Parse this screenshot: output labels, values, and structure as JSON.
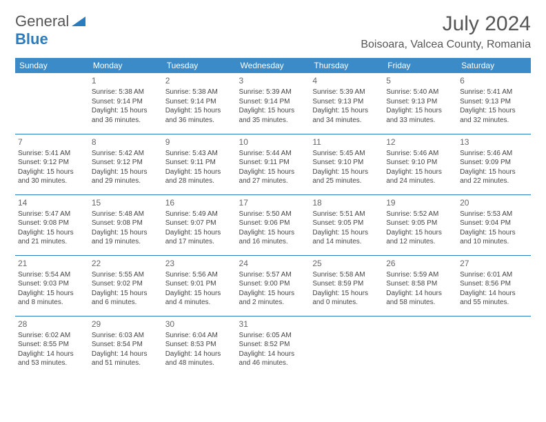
{
  "logo": {
    "text1": "General",
    "text2": "Blue"
  },
  "title": "July 2024",
  "location": "Boisoara, Valcea County, Romania",
  "header_bg": "#3b8bc9",
  "border_color": "#2b7bbf",
  "weekdays": [
    "Sunday",
    "Monday",
    "Tuesday",
    "Wednesday",
    "Thursday",
    "Friday",
    "Saturday"
  ],
  "start_offset": 1,
  "days": [
    {
      "n": 1,
      "sunrise": "5:38 AM",
      "sunset": "9:14 PM",
      "daylight": "15 hours and 36 minutes."
    },
    {
      "n": 2,
      "sunrise": "5:38 AM",
      "sunset": "9:14 PM",
      "daylight": "15 hours and 36 minutes."
    },
    {
      "n": 3,
      "sunrise": "5:39 AM",
      "sunset": "9:14 PM",
      "daylight": "15 hours and 35 minutes."
    },
    {
      "n": 4,
      "sunrise": "5:39 AM",
      "sunset": "9:13 PM",
      "daylight": "15 hours and 34 minutes."
    },
    {
      "n": 5,
      "sunrise": "5:40 AM",
      "sunset": "9:13 PM",
      "daylight": "15 hours and 33 minutes."
    },
    {
      "n": 6,
      "sunrise": "5:41 AM",
      "sunset": "9:13 PM",
      "daylight": "15 hours and 32 minutes."
    },
    {
      "n": 7,
      "sunrise": "5:41 AM",
      "sunset": "9:12 PM",
      "daylight": "15 hours and 30 minutes."
    },
    {
      "n": 8,
      "sunrise": "5:42 AM",
      "sunset": "9:12 PM",
      "daylight": "15 hours and 29 minutes."
    },
    {
      "n": 9,
      "sunrise": "5:43 AM",
      "sunset": "9:11 PM",
      "daylight": "15 hours and 28 minutes."
    },
    {
      "n": 10,
      "sunrise": "5:44 AM",
      "sunset": "9:11 PM",
      "daylight": "15 hours and 27 minutes."
    },
    {
      "n": 11,
      "sunrise": "5:45 AM",
      "sunset": "9:10 PM",
      "daylight": "15 hours and 25 minutes."
    },
    {
      "n": 12,
      "sunrise": "5:46 AM",
      "sunset": "9:10 PM",
      "daylight": "15 hours and 24 minutes."
    },
    {
      "n": 13,
      "sunrise": "5:46 AM",
      "sunset": "9:09 PM",
      "daylight": "15 hours and 22 minutes."
    },
    {
      "n": 14,
      "sunrise": "5:47 AM",
      "sunset": "9:08 PM",
      "daylight": "15 hours and 21 minutes."
    },
    {
      "n": 15,
      "sunrise": "5:48 AM",
      "sunset": "9:08 PM",
      "daylight": "15 hours and 19 minutes."
    },
    {
      "n": 16,
      "sunrise": "5:49 AM",
      "sunset": "9:07 PM",
      "daylight": "15 hours and 17 minutes."
    },
    {
      "n": 17,
      "sunrise": "5:50 AM",
      "sunset": "9:06 PM",
      "daylight": "15 hours and 16 minutes."
    },
    {
      "n": 18,
      "sunrise": "5:51 AM",
      "sunset": "9:05 PM",
      "daylight": "15 hours and 14 minutes."
    },
    {
      "n": 19,
      "sunrise": "5:52 AM",
      "sunset": "9:05 PM",
      "daylight": "15 hours and 12 minutes."
    },
    {
      "n": 20,
      "sunrise": "5:53 AM",
      "sunset": "9:04 PM",
      "daylight": "15 hours and 10 minutes."
    },
    {
      "n": 21,
      "sunrise": "5:54 AM",
      "sunset": "9:03 PM",
      "daylight": "15 hours and 8 minutes."
    },
    {
      "n": 22,
      "sunrise": "5:55 AM",
      "sunset": "9:02 PM",
      "daylight": "15 hours and 6 minutes."
    },
    {
      "n": 23,
      "sunrise": "5:56 AM",
      "sunset": "9:01 PM",
      "daylight": "15 hours and 4 minutes."
    },
    {
      "n": 24,
      "sunrise": "5:57 AM",
      "sunset": "9:00 PM",
      "daylight": "15 hours and 2 minutes."
    },
    {
      "n": 25,
      "sunrise": "5:58 AM",
      "sunset": "8:59 PM",
      "daylight": "15 hours and 0 minutes."
    },
    {
      "n": 26,
      "sunrise": "5:59 AM",
      "sunset": "8:58 PM",
      "daylight": "14 hours and 58 minutes."
    },
    {
      "n": 27,
      "sunrise": "6:01 AM",
      "sunset": "8:56 PM",
      "daylight": "14 hours and 55 minutes."
    },
    {
      "n": 28,
      "sunrise": "6:02 AM",
      "sunset": "8:55 PM",
      "daylight": "14 hours and 53 minutes."
    },
    {
      "n": 29,
      "sunrise": "6:03 AM",
      "sunset": "8:54 PM",
      "daylight": "14 hours and 51 minutes."
    },
    {
      "n": 30,
      "sunrise": "6:04 AM",
      "sunset": "8:53 PM",
      "daylight": "14 hours and 48 minutes."
    },
    {
      "n": 31,
      "sunrise": "6:05 AM",
      "sunset": "8:52 PM",
      "daylight": "14 hours and 46 minutes."
    }
  ],
  "labels": {
    "sunrise": "Sunrise: ",
    "sunset": "Sunset: ",
    "daylight": "Daylight: "
  }
}
